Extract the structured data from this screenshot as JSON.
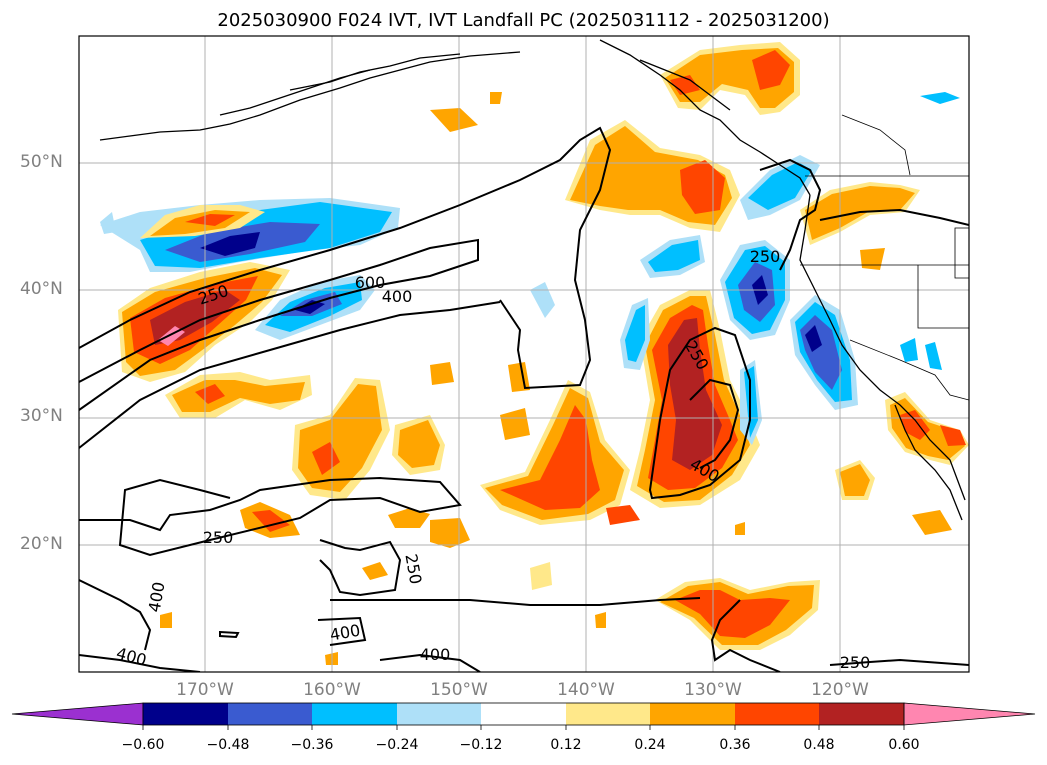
{
  "title": "2025030900 F024 IVT, IVT Landfall PC (2025031112 - 2025031200)",
  "lat_labels": [
    "50°N",
    "40°N",
    "30°N",
    "20°N"
  ],
  "lon_labels": [
    "170°W",
    "160°W",
    "150°W",
    "140°W",
    "130°W",
    "120°W"
  ],
  "contour_labels": [
    "250",
    "600",
    "400",
    "250",
    "250",
    "400",
    "250",
    "250",
    "400",
    "400",
    "400",
    "400",
    "250"
  ],
  "colorbar": {
    "tick_labels": [
      "−0.60",
      "−0.48",
      "−0.36",
      "−0.24",
      "−0.12",
      "0.12",
      "0.24",
      "0.36",
      "0.48",
      "0.60"
    ],
    "colors": [
      "#9b30d0",
      "#00008b",
      "#3a5bd0",
      "#00bfff",
      "#aee0f8",
      "#ffffff",
      "#ffe88a",
      "#ffa500",
      "#ff4500",
      "#b22222",
      "#ff86b0"
    ]
  },
  "colors": {
    "light_blue": "#aee0f8",
    "sky_blue": "#00bfff",
    "royal_blue": "#3a5bd0",
    "navy": "#00008b",
    "light_yellow": "#ffe88a",
    "orange": "#ffa500",
    "red_orange": "#ff4500",
    "dark_red": "#b22222",
    "pink": "#ff86b0"
  }
}
